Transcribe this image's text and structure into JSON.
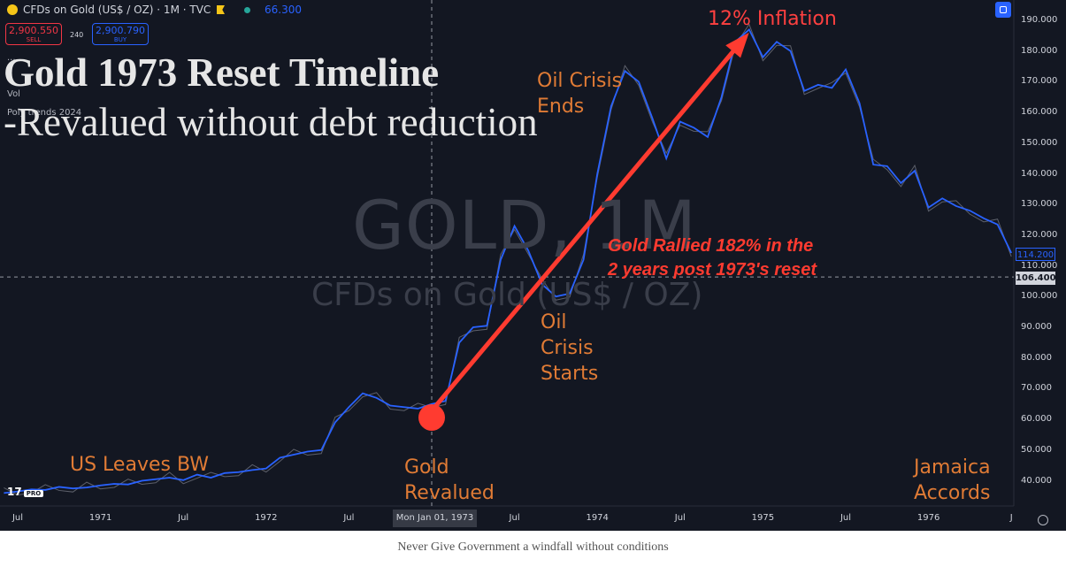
{
  "header": {
    "symbol_line": "CFDs on Gold (US$ / OZ) · 1M · TVC",
    "indicator_value": "66.300"
  },
  "trade": {
    "sell_price": "2,900.550",
    "sell_label": "SELL",
    "spread": "240",
    "buy_price": "2,900.790",
    "buy_label": "BUY"
  },
  "overlay_fragments": {
    "frag_a": "...",
    "frag_b": "Vol",
    "frag_c": "Poly trends 2024"
  },
  "watermark": {
    "line1": "GOLD, 1M",
    "line2": "CFDs on Gold (US$ / OZ)"
  },
  "title": "Gold 1973 Reset Timeline",
  "subtitle": "-Revalued without debt reduction",
  "annotations": {
    "us_leaves_bw": "US Leaves BW",
    "gold_revalued_1": "Gold",
    "gold_revalued_2": "Revalued",
    "oil_starts_1": "Oil",
    "oil_starts_2": "Crisis",
    "oil_starts_3": "Starts",
    "oil_ends_1": "Oil Crisis",
    "oil_ends_2": "Ends",
    "inflation": "12% Inflation",
    "rally_1": "Gold Rallied 182% in the",
    "rally_2": "2 years post 1973's reset",
    "jamaica_1": "Jamaica",
    "jamaica_2": "Accords"
  },
  "price_tags": {
    "last": "114.200",
    "crosshair": "106.400"
  },
  "crosshair_date": "Mon Jan 01, 1973",
  "branding": {
    "tv": "17",
    "pro": "PRO"
  },
  "caption": "Never Give Government a windfall without conditions",
  "colors": {
    "line": "#2962ff",
    "arrow": "#ff3b30",
    "background": "#131722",
    "annotation": "#e07b35"
  },
  "chart_data": {
    "type": "line",
    "title": "Gold 1973 Reset Timeline",
    "y_axis_ticks": [
      "40.000",
      "50.000",
      "60.000",
      "70.000",
      "80.000",
      "90.000",
      "100.000",
      "110.000",
      "120.000",
      "130.000",
      "140.000",
      "150.000",
      "160.000",
      "170.000",
      "180.000",
      "190.000"
    ],
    "ylim": [
      34,
      196
    ],
    "x_axis_ticks": [
      "Jul",
      "1971",
      "Jul",
      "1972",
      "Jul",
      "Mon Jan 01, 1973",
      "Jul",
      "1974",
      "Jul",
      "1975",
      "Jul",
      "1976",
      "J"
    ],
    "series": [
      {
        "name": "",
        "x": [
          "1970-06",
          "1970-07",
          "1970-08",
          "1970-09",
          "1970-10",
          "1970-11",
          "1970-12",
          "1971-01",
          "1971-02",
          "1971-03",
          "1971-04",
          "1971-05",
          "1971-06",
          "1971-07",
          "1971-08",
          "1971-09",
          "1971-10",
          "1971-11",
          "1971-12",
          "1972-01",
          "1972-02",
          "1972-03",
          "1972-04",
          "1972-05",
          "1972-06",
          "1972-07",
          "1972-08",
          "1972-09",
          "1972-10",
          "1972-11",
          "1972-12",
          "1973-01",
          "1973-02",
          "1973-03",
          "1973-04",
          "1973-05",
          "1973-06",
          "1973-07",
          "1973-08",
          "1973-09",
          "1973-10",
          "1973-11",
          "1973-12",
          "1974-01",
          "1974-02",
          "1974-03",
          "1974-04",
          "1974-05",
          "1974-06",
          "1974-07",
          "1974-08",
          "1974-09",
          "1974-10",
          "1974-11",
          "1974-12",
          "1975-01",
          "1975-02",
          "1975-03",
          "1975-04",
          "1975-05",
          "1975-06",
          "1975-07",
          "1975-08",
          "1975-09",
          "1975-10",
          "1975-11",
          "1975-12",
          "1976-01",
          "1976-02",
          "1976-03",
          "1976-04",
          "1976-05",
          "1976-06",
          "1976-07"
        ],
        "values": [
          36.0,
          36.5,
          37.2,
          37.0,
          38.0,
          37.5,
          37.8,
          38.5,
          39.0,
          38.8,
          40.0,
          40.5,
          41.0,
          40.2,
          42.0,
          41.0,
          42.5,
          42.8,
          43.5,
          44.0,
          47.5,
          48.5,
          49.5,
          50.0,
          59.0,
          64.0,
          68.5,
          67.0,
          64.5,
          64.0,
          63.5,
          65.0,
          66.0,
          85.0,
          90.0,
          90.5,
          112.0,
          123.0,
          115.0,
          104.0,
          100.0,
          101.0,
          112.0,
          140.0,
          162.0,
          173.5,
          170.0,
          158.0,
          145.0,
          157.0,
          155.0,
          152.0,
          165.0,
          183.0,
          187.0,
          178.0,
          183.0,
          180.0,
          167.0,
          169.0,
          168.0,
          174.0,
          163.0,
          143.0,
          142.5,
          137.0,
          141.0,
          129.0,
          132.0,
          129.5,
          128.0,
          125.5,
          123.5,
          114.2
        ]
      }
    ],
    "annotations": [
      {
        "text": "Gold Revalued",
        "x": "1973-01"
      },
      {
        "text": "12% Inflation",
        "x": "1974-12"
      }
    ],
    "grid": false,
    "legend": "none"
  }
}
